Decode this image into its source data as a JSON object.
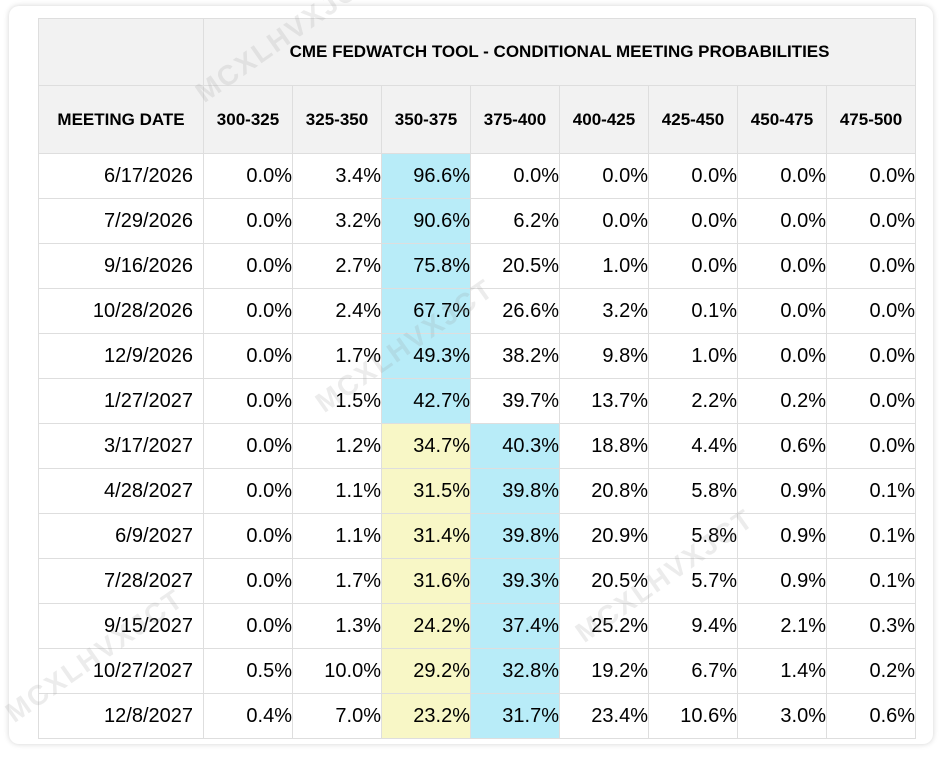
{
  "table": {
    "title": "CME FEDWATCH TOOL - CONDITIONAL MEETING PROBABILITIES",
    "date_header": "MEETING DATE",
    "columns": [
      "300-325",
      "325-350",
      "350-375",
      "375-400",
      "400-425",
      "425-450",
      "450-475",
      "475-500"
    ],
    "rows": [
      {
        "date": "6/17/2026",
        "values": [
          "0.0%",
          "3.4%",
          "96.6%",
          "0.0%",
          "0.0%",
          "0.0%",
          "0.0%",
          "0.0%"
        ],
        "highlight": {
          "2": "primary"
        }
      },
      {
        "date": "7/29/2026",
        "values": [
          "0.0%",
          "3.2%",
          "90.6%",
          "6.2%",
          "0.0%",
          "0.0%",
          "0.0%",
          "0.0%"
        ],
        "highlight": {
          "2": "primary"
        }
      },
      {
        "date": "9/16/2026",
        "values": [
          "0.0%",
          "2.7%",
          "75.8%",
          "20.5%",
          "1.0%",
          "0.0%",
          "0.0%",
          "0.0%"
        ],
        "highlight": {
          "2": "primary"
        }
      },
      {
        "date": "10/28/2026",
        "values": [
          "0.0%",
          "2.4%",
          "67.7%",
          "26.6%",
          "3.2%",
          "0.1%",
          "0.0%",
          "0.0%"
        ],
        "highlight": {
          "2": "primary"
        }
      },
      {
        "date": "12/9/2026",
        "values": [
          "0.0%",
          "1.7%",
          "49.3%",
          "38.2%",
          "9.8%",
          "1.0%",
          "0.0%",
          "0.0%"
        ],
        "highlight": {
          "2": "primary"
        }
      },
      {
        "date": "1/27/2027",
        "values": [
          "0.0%",
          "1.5%",
          "42.7%",
          "39.7%",
          "13.7%",
          "2.2%",
          "0.2%",
          "0.0%"
        ],
        "highlight": {
          "2": "primary"
        }
      },
      {
        "date": "3/17/2027",
        "values": [
          "0.0%",
          "1.2%",
          "34.7%",
          "40.3%",
          "18.8%",
          "4.4%",
          "0.6%",
          "0.0%"
        ],
        "highlight": {
          "2": "secondary",
          "3": "primary"
        }
      },
      {
        "date": "4/28/2027",
        "values": [
          "0.0%",
          "1.1%",
          "31.5%",
          "39.8%",
          "20.8%",
          "5.8%",
          "0.9%",
          "0.1%"
        ],
        "highlight": {
          "2": "secondary",
          "3": "primary"
        }
      },
      {
        "date": "6/9/2027",
        "values": [
          "0.0%",
          "1.1%",
          "31.4%",
          "39.8%",
          "20.9%",
          "5.8%",
          "0.9%",
          "0.1%"
        ],
        "highlight": {
          "2": "secondary",
          "3": "primary"
        }
      },
      {
        "date": "7/28/2027",
        "values": [
          "0.0%",
          "1.7%",
          "31.6%",
          "39.3%",
          "20.5%",
          "5.7%",
          "0.9%",
          "0.1%"
        ],
        "highlight": {
          "2": "secondary",
          "3": "primary"
        }
      },
      {
        "date": "9/15/2027",
        "values": [
          "0.0%",
          "1.3%",
          "24.2%",
          "37.4%",
          "25.2%",
          "9.4%",
          "2.1%",
          "0.3%"
        ],
        "highlight": {
          "2": "secondary",
          "3": "primary"
        }
      },
      {
        "date": "10/27/2027",
        "values": [
          "0.5%",
          "10.0%",
          "29.2%",
          "32.8%",
          "19.2%",
          "6.7%",
          "1.4%",
          "0.2%"
        ],
        "highlight": {
          "2": "secondary",
          "3": "primary"
        }
      },
      {
        "date": "12/8/2027",
        "values": [
          "0.4%",
          "7.0%",
          "23.2%",
          "31.7%",
          "23.4%",
          "10.6%",
          "3.0%",
          "0.6%"
        ],
        "highlight": {
          "2": "secondary",
          "3": "primary"
        }
      }
    ]
  },
  "colors": {
    "highlight_primary": "#b8ecf8",
    "highlight_secondary": "#f8f7c6",
    "header_background": "#f2f2f2",
    "grid_line": "#dedede"
  },
  "watermark": {
    "text": "MCXLHVXJCT"
  }
}
